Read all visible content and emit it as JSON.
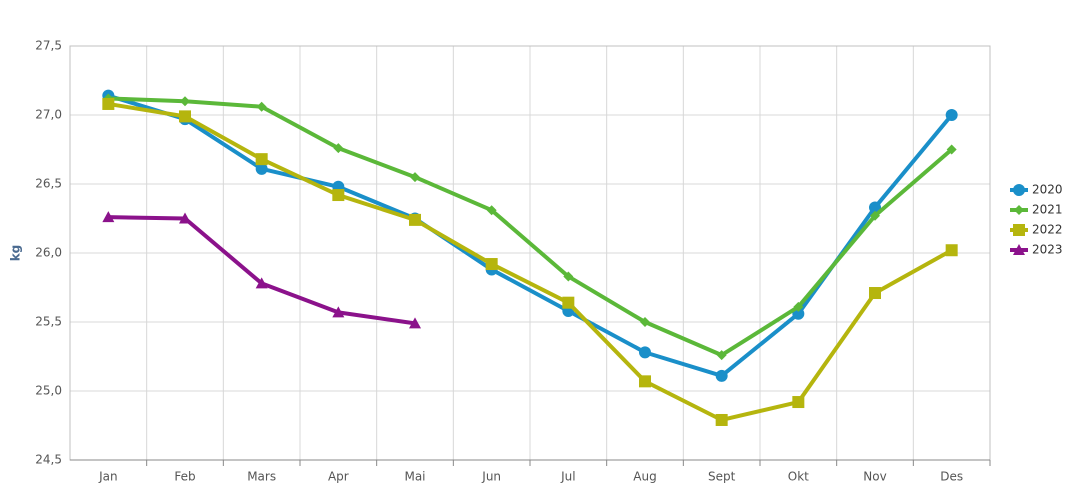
{
  "chart_data": {
    "type": "line",
    "y_label": "kg",
    "categories": [
      "Jan",
      "Feb",
      "Mars",
      "Apr",
      "Mai",
      "Jun",
      "Jul",
      "Aug",
      "Sept",
      "Okt",
      "Nov",
      "Des"
    ],
    "series": [
      {
        "name": "2020",
        "color": "#1a8fc9",
        "marker": "circle",
        "values": [
          27.14,
          26.97,
          26.61,
          26.48,
          26.25,
          25.88,
          25.58,
          25.28,
          25.11,
          25.56,
          26.33,
          27.0
        ]
      },
      {
        "name": "2021",
        "color": "#5bb839",
        "marker": "diamond",
        "values": [
          27.12,
          27.1,
          27.06,
          26.76,
          26.55,
          26.31,
          25.83,
          25.5,
          25.26,
          25.61,
          26.27,
          26.75
        ]
      },
      {
        "name": "2022",
        "color": "#b5b50e",
        "marker": "square",
        "values": [
          27.08,
          26.99,
          26.68,
          26.42,
          26.24,
          25.92,
          25.64,
          25.07,
          24.79,
          24.92,
          25.71,
          26.02
        ]
      },
      {
        "name": "2023",
        "color": "#8b128b",
        "marker": "triangle",
        "values": [
          26.26,
          26.25,
          25.78,
          25.57,
          25.49,
          null,
          null,
          null,
          null,
          null,
          null,
          null
        ]
      }
    ],
    "ylim": [
      24.5,
      27.5
    ],
    "yticks": [
      {
        "value": 24.5,
        "label": "24,5"
      },
      {
        "value": 25,
        "label": "25,0"
      },
      {
        "value": 25.5,
        "label": "25,5"
      },
      {
        "value": 26,
        "label": "26,0"
      },
      {
        "value": 26.5,
        "label": "26,5"
      },
      {
        "value": 27,
        "label": "27,0"
      },
      {
        "value": 27.5,
        "label": "27,5"
      }
    ],
    "grid": true,
    "legend": "right"
  }
}
